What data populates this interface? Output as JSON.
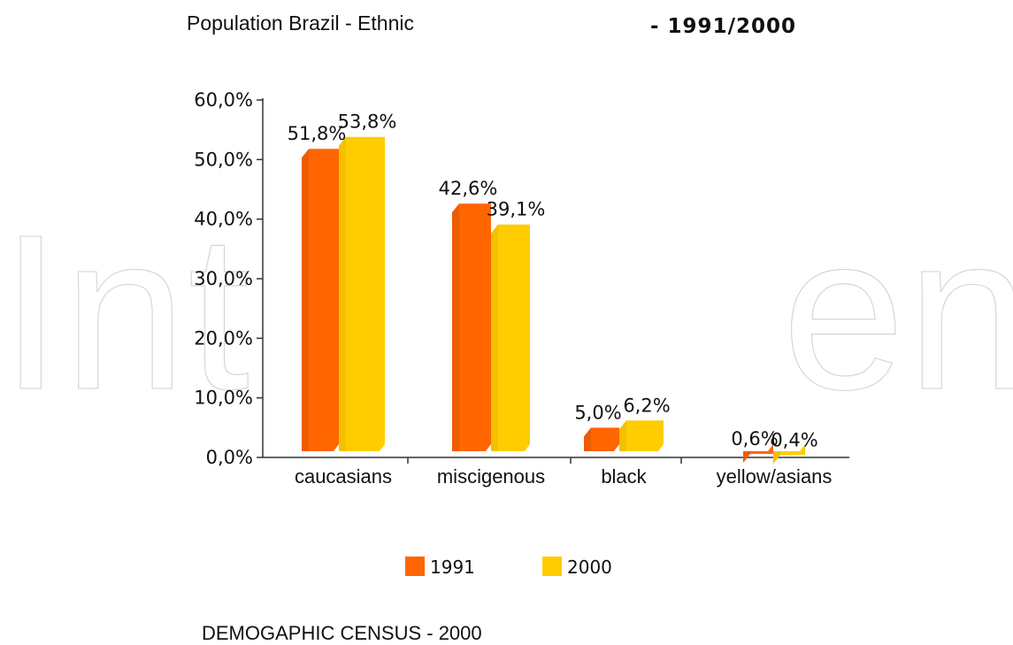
{
  "header": {
    "title_left": "Population Brazil - Ethnic",
    "title_right": "- 1991/2000"
  },
  "footer": {
    "text": "DEMOGAPHIC CENSUS - 2000"
  },
  "watermark": {
    "left": "Int",
    "right": "en"
  },
  "colors": {
    "series_1991": "#ff6600",
    "series_2000": "#ffcc00",
    "axis": "#333333"
  },
  "chart_data": {
    "type": "bar",
    "title": "",
    "xlabel": "",
    "ylabel": "",
    "ylim": [
      0,
      60
    ],
    "y_ticks": [
      "0,0%",
      "10,0%",
      "20,0%",
      "30,0%",
      "40,0%",
      "50,0%",
      "60,0%"
    ],
    "categories": [
      "caucasians",
      "miscigenous",
      "black",
      "yellow/asians"
    ],
    "series": [
      {
        "name": "1991",
        "values": [
          51.8,
          42.6,
          5.0,
          0.6
        ],
        "labels": [
          "51,8%",
          "42,6%",
          "5,0%",
          "0,6%"
        ]
      },
      {
        "name": "2000",
        "values": [
          53.8,
          39.1,
          6.2,
          0.4
        ],
        "labels": [
          "53,8%",
          "39,1%",
          "6,2%",
          "0,4%"
        ]
      }
    ],
    "legend_position": "bottom",
    "grid": false
  }
}
